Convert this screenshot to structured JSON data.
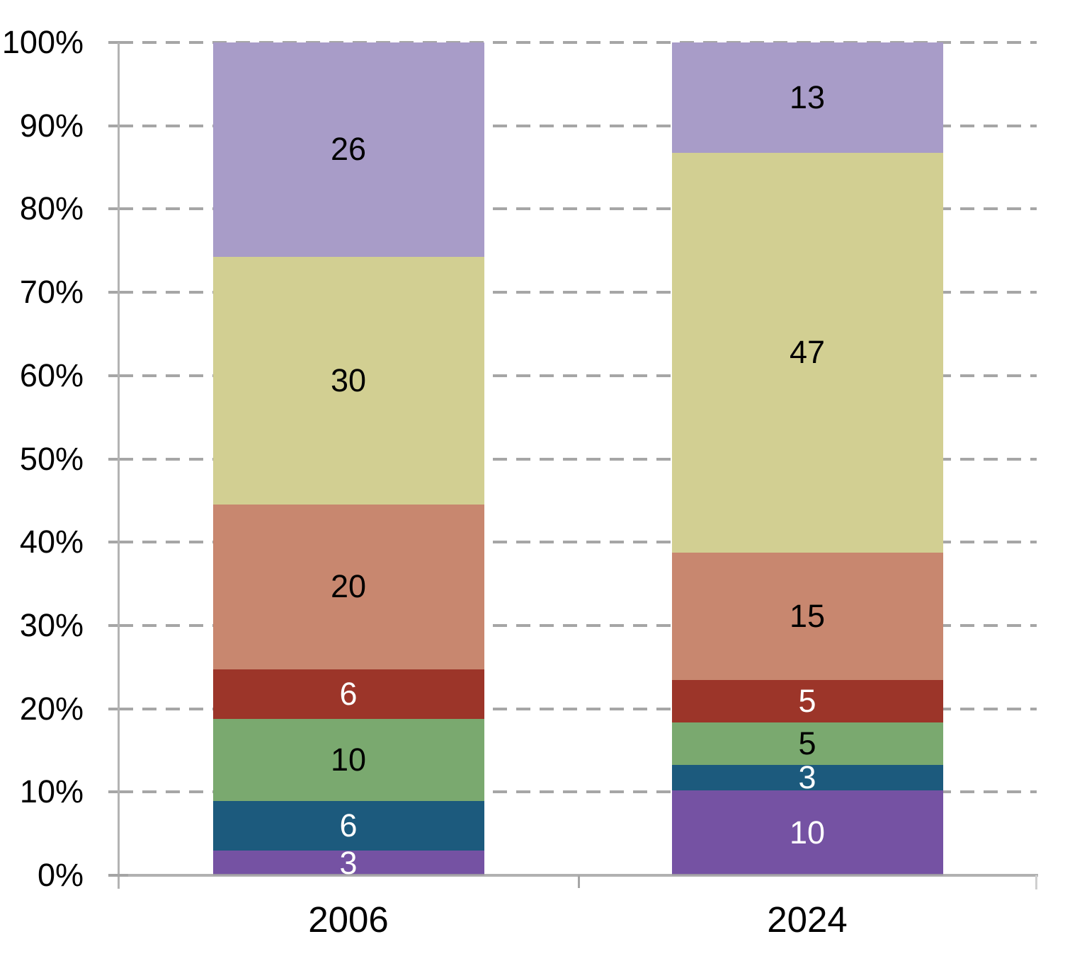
{
  "chart_data": {
    "type": "bar",
    "subtype": "stacked-100-percent",
    "title": "",
    "xlabel": "",
    "ylabel": "",
    "legend": "none",
    "grid": "dashed-horizontal",
    "background_color": "#ffffff",
    "axis_color": "#b3b3b3",
    "gridline_color": "#a6a6a6",
    "tick_label_color": "#000000",
    "categories": [
      "2006",
      "2024"
    ],
    "y_axis": {
      "min": 0,
      "max": 100,
      "ticks": [
        "0%",
        "10%",
        "20%",
        "30%",
        "40%",
        "50%",
        "60%",
        "70%",
        "80%",
        "90%",
        "100%"
      ]
    },
    "series": [
      {
        "name": "series-1-purple",
        "color": "#7552a3",
        "label_color": "#ffffff",
        "values": [
          3,
          10
        ]
      },
      {
        "name": "series-2-teal",
        "color": "#1c5a7d",
        "label_color": "#ffffff",
        "values": [
          6,
          3
        ]
      },
      {
        "name": "series-3-green",
        "color": "#7aa96f",
        "label_color": "#000000",
        "values": [
          10,
          5
        ]
      },
      {
        "name": "series-4-dark-red",
        "color": "#9c3529",
        "label_color": "#ffffff",
        "values": [
          6,
          5
        ]
      },
      {
        "name": "series-5-salmon",
        "color": "#c8876f",
        "label_color": "#000000",
        "values": [
          20,
          15
        ]
      },
      {
        "name": "series-6-khaki",
        "color": "#d2cf92",
        "label_color": "#000000",
        "values": [
          30,
          47
        ]
      },
      {
        "name": "series-7-lavender",
        "color": "#a89cc8",
        "label_color": "#000000",
        "values": [
          26,
          13
        ]
      }
    ]
  }
}
